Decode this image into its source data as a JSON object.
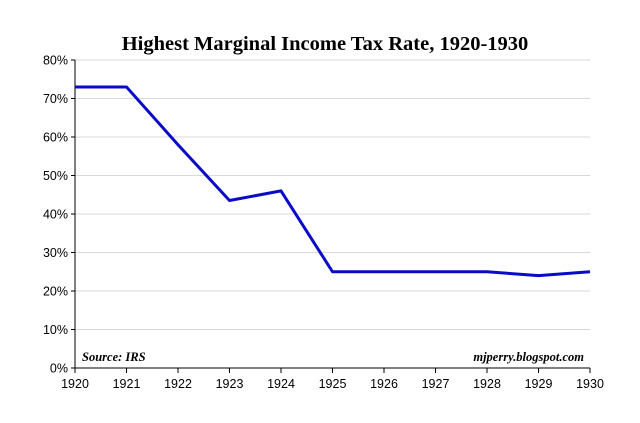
{
  "chart_data": {
    "type": "line",
    "title": "Highest Marginal Income Tax Rate, 1920-1930",
    "xlabel": "",
    "ylabel": "",
    "source_note": "Source: IRS",
    "credit_note": "mjperry.blogspot.com",
    "x_ticks": [
      "1920",
      "1921",
      "1922",
      "1923",
      "1924",
      "1925",
      "1926",
      "1927",
      "1928",
      "1929",
      "1930"
    ],
    "y_ticks": [
      "0%",
      "10%",
      "20%",
      "30%",
      "40%",
      "50%",
      "60%",
      "70%",
      "80%"
    ],
    "xlim": [
      1920,
      1930
    ],
    "ylim": [
      0,
      80
    ],
    "grid": true,
    "series": [
      {
        "color": "#0a0ac8",
        "points": [
          {
            "x": 1920,
            "y": 73
          },
          {
            "x": 1921,
            "y": 73
          },
          {
            "x": 1922,
            "y": 58
          },
          {
            "x": 1923,
            "y": 43.5
          },
          {
            "x": 1924,
            "y": 46
          },
          {
            "x": 1925,
            "y": 25
          },
          {
            "x": 1926,
            "y": 25
          },
          {
            "x": 1927,
            "y": 25
          },
          {
            "x": 1928,
            "y": 25
          },
          {
            "x": 1929,
            "y": 24
          },
          {
            "x": 1930,
            "y": 25
          }
        ]
      }
    ],
    "colors": {
      "line": "#0a0ac8",
      "grid": "#d9d9d9",
      "axis": "#000000"
    }
  }
}
